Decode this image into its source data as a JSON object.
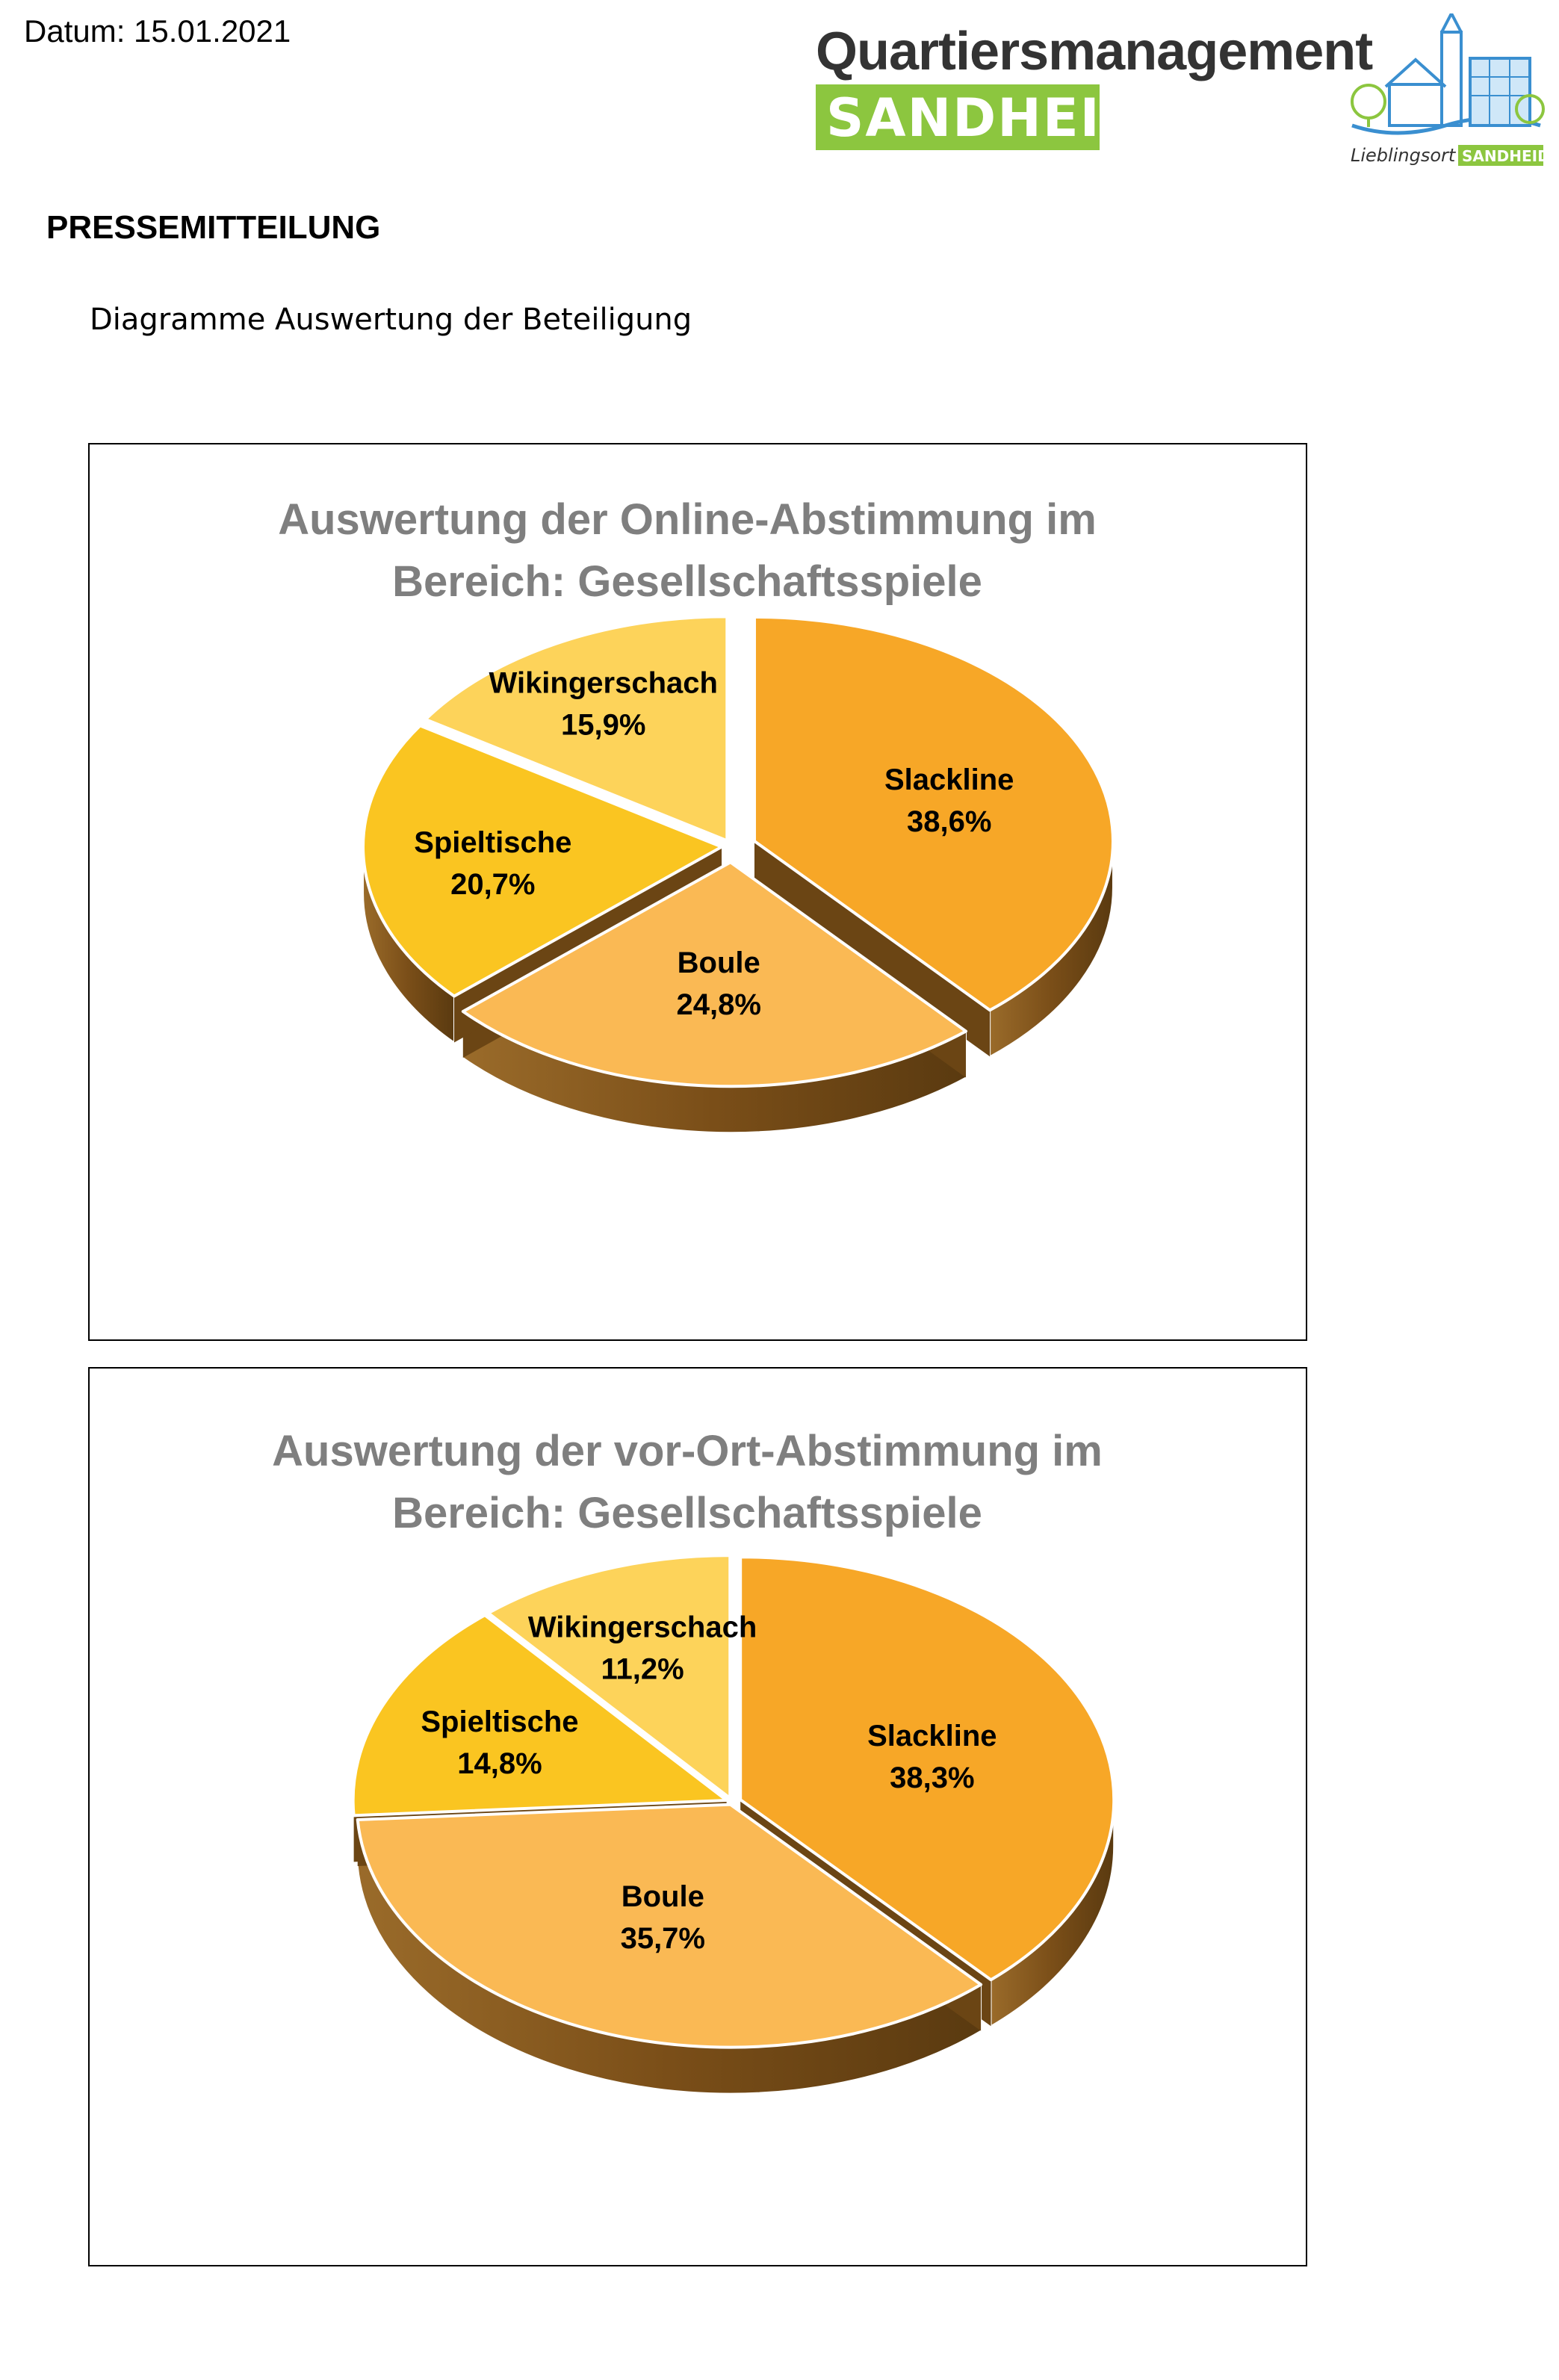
{
  "header": {
    "date": "Datum: 15.01.2021",
    "logo_title": "Quartiersmanagement",
    "logo_band": "SANDHEIDE",
    "logo_tag_1": "Lieblingsort",
    "logo_tag_2": "SANDHEIDE"
  },
  "press_label": "PRESSEMITTEILUNG",
  "subtitle": "Diagramme Auswertung der Beteiligung",
  "colors": {
    "slackline": "#F7A727",
    "boule": "#FAB954",
    "spieltische": "#FAC521",
    "wikingerschach": "#FDD35A",
    "side": "#8A5A1E",
    "logo_green": "#8CC63F"
  },
  "chart_data": [
    {
      "type": "pie",
      "title_lines": [
        "Auswertung der Online-Abstimmung im",
        "Bereich: Gesellschaftsspiele"
      ],
      "categories": [
        "Slackline",
        "Boule",
        "Spieltische",
        "Wikingerschach"
      ],
      "values": [
        38.6,
        24.8,
        20.7,
        15.9
      ],
      "value_labels": [
        "38,6%",
        "24,8%",
        "20,7%",
        "15,9%"
      ],
      "style": "3d-exploded"
    },
    {
      "type": "pie",
      "title_lines": [
        "Auswertung der vor-Ort-Abstimmung im",
        "Bereich: Gesellschaftsspiele"
      ],
      "categories": [
        "Slackline",
        "Boule",
        "Spieltische",
        "Wikingerschach"
      ],
      "values": [
        38.3,
        35.7,
        14.8,
        11.2
      ],
      "value_labels": [
        "38,3%",
        "35,7%",
        "14,8%",
        "11,2%"
      ],
      "style": "3d-exploded"
    }
  ]
}
